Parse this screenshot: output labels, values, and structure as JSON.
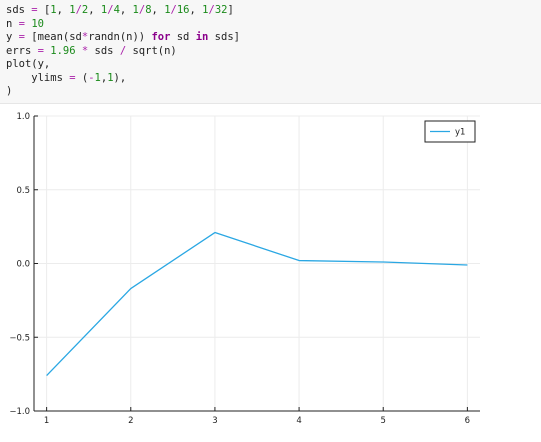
{
  "code": {
    "lines": [
      [
        {
          "t": "id",
          "v": "sds "
        },
        {
          "t": "op",
          "v": "="
        },
        {
          "t": "id",
          "v": " ["
        },
        {
          "t": "num",
          "v": "1"
        },
        {
          "t": "id",
          "v": ", "
        },
        {
          "t": "num",
          "v": "1"
        },
        {
          "t": "op",
          "v": "/"
        },
        {
          "t": "num",
          "v": "2"
        },
        {
          "t": "id",
          "v": ", "
        },
        {
          "t": "num",
          "v": "1"
        },
        {
          "t": "op",
          "v": "/"
        },
        {
          "t": "num",
          "v": "4"
        },
        {
          "t": "id",
          "v": ", "
        },
        {
          "t": "num",
          "v": "1"
        },
        {
          "t": "op",
          "v": "/"
        },
        {
          "t": "num",
          "v": "8"
        },
        {
          "t": "id",
          "v": ", "
        },
        {
          "t": "num",
          "v": "1"
        },
        {
          "t": "op",
          "v": "/"
        },
        {
          "t": "num",
          "v": "16"
        },
        {
          "t": "id",
          "v": ", "
        },
        {
          "t": "num",
          "v": "1"
        },
        {
          "t": "op",
          "v": "/"
        },
        {
          "t": "num",
          "v": "32"
        },
        {
          "t": "id",
          "v": "]"
        }
      ],
      [
        {
          "t": "id",
          "v": "n "
        },
        {
          "t": "op",
          "v": "="
        },
        {
          "t": "id",
          "v": " "
        },
        {
          "t": "num",
          "v": "10"
        }
      ],
      [
        {
          "t": "id",
          "v": "y "
        },
        {
          "t": "op",
          "v": "="
        },
        {
          "t": "id",
          "v": " [mean(sd"
        },
        {
          "t": "op",
          "v": "*"
        },
        {
          "t": "id",
          "v": "randn(n)) "
        },
        {
          "t": "kw",
          "v": "for"
        },
        {
          "t": "id",
          "v": " sd "
        },
        {
          "t": "kw",
          "v": "in"
        },
        {
          "t": "id",
          "v": " sds]"
        }
      ],
      [
        {
          "t": "id",
          "v": "errs "
        },
        {
          "t": "op",
          "v": "="
        },
        {
          "t": "id",
          "v": " "
        },
        {
          "t": "num",
          "v": "1.96"
        },
        {
          "t": "id",
          "v": " "
        },
        {
          "t": "op",
          "v": "*"
        },
        {
          "t": "id",
          "v": " sds "
        },
        {
          "t": "op",
          "v": "/"
        },
        {
          "t": "id",
          "v": " sqrt(n)"
        }
      ],
      [
        {
          "t": "id",
          "v": "plot(y,"
        }
      ],
      [
        {
          "t": "id",
          "v": "    ylims "
        },
        {
          "t": "op",
          "v": "="
        },
        {
          "t": "id",
          "v": " ("
        },
        {
          "t": "op",
          "v": "-"
        },
        {
          "t": "num",
          "v": "1"
        },
        {
          "t": "id",
          "v": ","
        },
        {
          "t": "num",
          "v": "1"
        },
        {
          "t": "id",
          "v": "),"
        }
      ],
      [
        {
          "t": "id",
          "v": ")"
        }
      ]
    ]
  },
  "chart_data": {
    "type": "line",
    "x": [
      1,
      2,
      3,
      4,
      5,
      6
    ],
    "series": [
      {
        "name": "y1",
        "values": [
          -0.76,
          -0.17,
          0.21,
          0.02,
          0.01,
          -0.01
        ],
        "color": "#2aa7e3"
      }
    ],
    "xticks": [
      "1",
      "2",
      "3",
      "4",
      "5",
      "6"
    ],
    "yticks": [
      "1.0",
      "0.5",
      "0.0",
      "−0.5",
      "−1.0"
    ],
    "ytick_values": [
      1.0,
      0.5,
      0.0,
      -0.5,
      -1.0
    ],
    "xlim": [
      0.85,
      6.15
    ],
    "ylim": [
      -1,
      1
    ],
    "grid": true,
    "legend": "top-right",
    "title": "",
    "xlabel": "",
    "ylabel": ""
  }
}
